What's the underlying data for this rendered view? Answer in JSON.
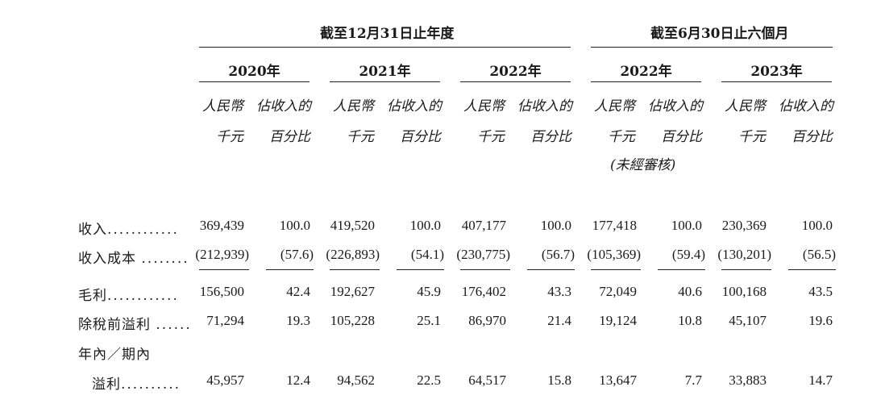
{
  "groups": [
    "截至12月31日止年度",
    "截至6月30日止六個月"
  ],
  "years": [
    "2020年",
    "2021年",
    "2022年",
    "2022年",
    "2023年"
  ],
  "col_heads": {
    "rmb_line1": "人民幣",
    "rmb_line2": "千元",
    "pct_line1": "佔收入的",
    "pct_line2": "百分比"
  },
  "unaudited_note": "(未經審核)",
  "rows": [
    {
      "label": "收入",
      "dots": "............",
      "values": [
        "369,439",
        "100.0",
        "419,520",
        "100.0",
        "407,177",
        "100.0",
        "177,418",
        "100.0",
        "230,369",
        "100.0"
      ]
    },
    {
      "label": "收入成本",
      "dots": "........",
      "values": [
        "(212,939)",
        "(57.6)",
        "(226,893)",
        "(54.1)",
        "(230,775)",
        "(56.7)",
        "(105,369)",
        "(59.4)",
        "(130,201)",
        "(56.5)"
      ]
    },
    {
      "label": "毛利",
      "dots": "............",
      "values": [
        "156,500",
        "42.4",
        "192,627",
        "45.9",
        "176,402",
        "43.3",
        "72,049",
        "40.6",
        "100,168",
        "43.5"
      ]
    },
    {
      "label": "除稅前溢利",
      "dots": "......",
      "values": [
        "71,294",
        "19.3",
        "105,228",
        "25.1",
        "86,970",
        "21.4",
        "19,124",
        "10.8",
        "45,107",
        "19.6"
      ]
    },
    {
      "label_line1": "年內／期內",
      "label": "溢利",
      "dots": "..........",
      "values": [
        "45,957",
        "12.4",
        "94,562",
        "22.5",
        "64,517",
        "15.8",
        "13,647",
        "7.7",
        "33,883",
        "14.7"
      ]
    }
  ]
}
